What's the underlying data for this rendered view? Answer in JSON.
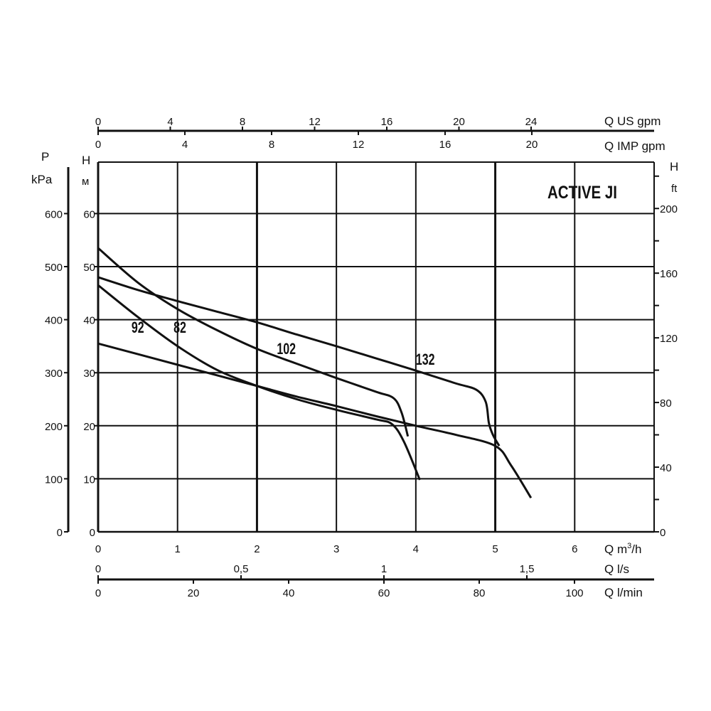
{
  "chart_data": {
    "type": "line",
    "title": "ACTIVE JI",
    "xlabel": "Q m³/h",
    "ylabel": "H м",
    "xlim": [
      0,
      7
    ],
    "ylim": [
      0,
      70
    ],
    "grid": true,
    "x_ticks": [
      0,
      1,
      2,
      3,
      4,
      5,
      6
    ],
    "y_ticks": [
      10,
      20,
      30,
      40,
      50,
      60
    ],
    "y_tick_zero": "0",
    "x_unit": "Q m",
    "x_unit_sup": "3",
    "x_unit_tail": "/h",
    "y_label_top": "H",
    "y_label_unit": "м",
    "secondary_axes": {
      "left_pressure": {
        "label": "P",
        "unit": "kPa",
        "ticks": [
          "0",
          "100",
          "200",
          "300",
          "400",
          "500",
          "600"
        ]
      },
      "right_ft": {
        "label": "H",
        "unit": "ft",
        "ticks": [
          "0",
          "40",
          "80",
          "120",
          "160",
          "200"
        ],
        "minor_step": 20
      },
      "top_us_gpm": {
        "label": "Q US gpm",
        "ticks": [
          "0",
          "4",
          "8",
          "12",
          "16",
          "20",
          "24"
        ]
      },
      "top_imp_gpm": {
        "label": "Q IMP gpm",
        "ticks": [
          "0",
          "4",
          "8",
          "12",
          "16",
          "20"
        ]
      },
      "bottom_ls": {
        "label": "Q l/s",
        "ticks": [
          "0",
          "0,5",
          "1",
          "1,5"
        ]
      },
      "bottom_lmin": {
        "label": "Q l/min",
        "ticks": [
          "0",
          "20",
          "40",
          "60",
          "80",
          "100"
        ]
      }
    },
    "series": [
      {
        "name": "82",
        "points": [
          [
            0,
            46.5
          ],
          [
            0.5,
            40.5
          ],
          [
            1,
            35
          ],
          [
            1.5,
            30.5
          ],
          [
            2,
            27.5
          ],
          [
            2.5,
            25
          ],
          [
            3,
            23
          ],
          [
            3.5,
            21.2
          ],
          [
            3.7,
            20.3
          ],
          [
            3.85,
            17
          ],
          [
            4.05,
            9.8
          ]
        ]
      },
      {
        "name": "92",
        "points": [
          [
            0,
            35.5
          ],
          [
            0.5,
            33.5
          ],
          [
            1,
            31.5
          ],
          [
            1.5,
            29.5
          ],
          [
            2,
            27.5
          ],
          [
            2.5,
            25.5
          ],
          [
            3,
            23.7
          ],
          [
            3.5,
            21.8
          ],
          [
            4,
            20
          ],
          [
            4.5,
            18.3
          ],
          [
            5,
            16.2
          ],
          [
            5.2,
            12.5
          ],
          [
            5.45,
            6.4
          ]
        ]
      },
      {
        "name": "102",
        "points": [
          [
            0,
            53.5
          ],
          [
            0.5,
            47
          ],
          [
            1,
            42
          ],
          [
            1.5,
            38
          ],
          [
            2,
            34.5
          ],
          [
            2.5,
            31.7
          ],
          [
            3,
            29
          ],
          [
            3.5,
            26.4
          ],
          [
            3.72,
            25.2
          ],
          [
            3.82,
            22.5
          ],
          [
            3.9,
            18
          ]
        ]
      },
      {
        "name": "132",
        "points": [
          [
            0,
            48
          ],
          [
            0.5,
            45.6
          ],
          [
            1,
            43.5
          ],
          [
            1.5,
            41.5
          ],
          [
            2,
            39.5
          ],
          [
            2.5,
            37.2
          ],
          [
            3,
            35
          ],
          [
            3.5,
            32.7
          ],
          [
            4,
            30.4
          ],
          [
            4.5,
            28
          ],
          [
            4.76,
            26.8
          ],
          [
            4.88,
            24.5
          ],
          [
            4.92,
            20.5
          ],
          [
            4.97,
            18.3
          ],
          [
            5.05,
            16.2
          ]
        ]
      }
    ]
  }
}
